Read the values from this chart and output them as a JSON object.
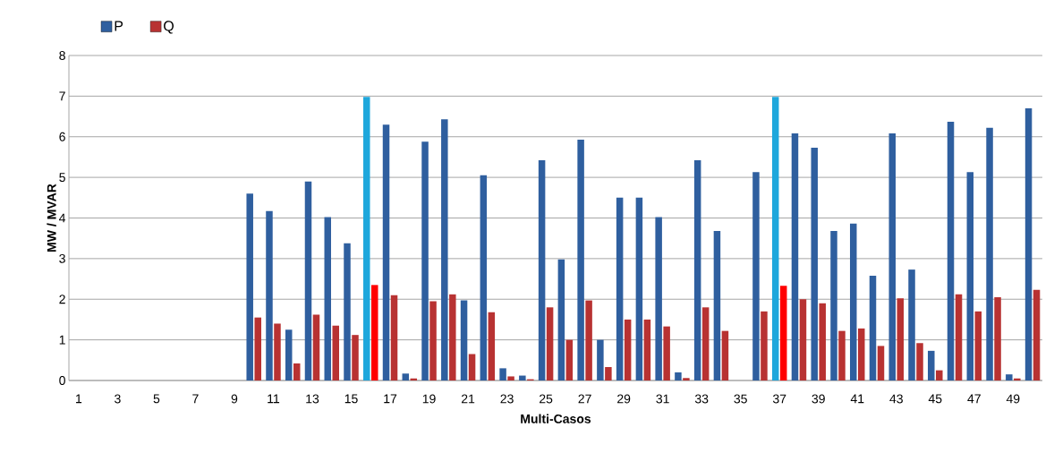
{
  "chart_data": {
    "type": "bar",
    "xlabel": "Multi-Casos",
    "ylabel": "MW / MVAR",
    "categories": [
      "1",
      null,
      "3",
      null,
      "5",
      null,
      "7",
      null,
      "9",
      null,
      "11",
      null,
      "13",
      null,
      "15",
      null,
      "17",
      null,
      "19",
      null,
      "21",
      null,
      "23",
      null,
      "25",
      null,
      "27",
      null,
      "29",
      null,
      "31",
      null,
      "33",
      null,
      "35",
      null,
      "37",
      null,
      "39",
      null,
      "41",
      null,
      "43",
      null,
      "45",
      null,
      "47",
      null,
      "49",
      null
    ],
    "series": [
      {
        "name": "P",
        "color": "#2f5f9f",
        "colors": [
          "#2f5f9f",
          "#2f5f9f",
          "#2f5f9f",
          "#2f5f9f",
          "#2f5f9f",
          "#2f5f9f",
          "#2f5f9f",
          "#2f5f9f",
          "#2f5f9f",
          "#2f5f9f",
          "#2f5f9f",
          "#2f5f9f",
          "#2f5f9f",
          "#2f5f9f",
          "#2f5f9f",
          "#1ea7dc",
          "#2f5f9f",
          "#2f5f9f",
          "#2f5f9f",
          "#2f5f9f",
          "#2f5f9f",
          "#2f5f9f",
          "#2f5f9f",
          "#2f5f9f",
          "#2f5f9f",
          "#2f5f9f",
          "#2f5f9f",
          "#2f5f9f",
          "#2f5f9f",
          "#2f5f9f",
          "#2f5f9f",
          "#2f5f9f",
          "#2f5f9f",
          "#2f5f9f",
          "#2f5f9f",
          "#2f5f9f",
          "#1ea7dc",
          "#2f5f9f",
          "#2f5f9f",
          "#2f5f9f",
          "#2f5f9f",
          "#2f5f9f",
          "#2f5f9f",
          "#2f5f9f",
          "#2f5f9f",
          "#2f5f9f",
          "#2f5f9f",
          "#2f5f9f",
          "#2f5f9f",
          "#2f5f9f"
        ],
        "values": [
          0,
          0,
          0,
          0,
          0,
          0,
          0,
          0,
          0,
          4.6,
          4.17,
          1.25,
          4.9,
          4.02,
          3.38,
          6.98,
          6.3,
          0.17,
          5.88,
          6.43,
          1.97,
          5.05,
          0.3,
          0.12,
          5.42,
          2.98,
          5.93,
          1.0,
          4.5,
          4.5,
          4.02,
          0.2,
          5.42,
          3.68,
          0,
          5.13,
          6.98,
          6.08,
          5.73,
          3.68,
          3.86,
          2.58,
          6.08,
          2.73,
          0.73,
          6.37,
          5.13,
          6.22,
          0.15,
          6.7
        ]
      },
      {
        "name": "Q",
        "color": "#b83232",
        "colors": [
          "#b83232",
          "#b83232",
          "#b83232",
          "#b83232",
          "#b83232",
          "#b83232",
          "#b83232",
          "#b83232",
          "#b83232",
          "#b83232",
          "#b83232",
          "#b83232",
          "#b83232",
          "#b83232",
          "#b83232",
          "#ff0000",
          "#b83232",
          "#b83232",
          "#b83232",
          "#b83232",
          "#b83232",
          "#b83232",
          "#b83232",
          "#b83232",
          "#b83232",
          "#b83232",
          "#b83232",
          "#b83232",
          "#b83232",
          "#b83232",
          "#b83232",
          "#b83232",
          "#b83232",
          "#b83232",
          "#b83232",
          "#b83232",
          "#ff0000",
          "#b83232",
          "#b83232",
          "#b83232",
          "#b83232",
          "#b83232",
          "#b83232",
          "#b83232",
          "#b83232",
          "#b83232",
          "#b83232",
          "#b83232",
          "#b83232",
          "#b83232"
        ],
        "values": [
          0,
          0,
          0,
          0,
          0,
          0,
          0,
          0,
          0,
          1.55,
          1.4,
          0.42,
          1.62,
          1.35,
          1.12,
          2.35,
          2.1,
          0.05,
          1.95,
          2.12,
          0.65,
          1.68,
          0.1,
          0.03,
          1.8,
          1.0,
          1.97,
          0.33,
          1.5,
          1.5,
          1.33,
          0.06,
          1.8,
          1.22,
          0,
          1.7,
          2.33,
          2.0,
          1.9,
          1.22,
          1.28,
          0.85,
          2.02,
          0.92,
          0.25,
          2.12,
          1.7,
          2.05,
          0.05,
          2.23
        ]
      }
    ],
    "ylim": [
      0,
      8
    ],
    "yticks": [
      0,
      1,
      2,
      3,
      4,
      5,
      6,
      7,
      8
    ],
    "grid": "y",
    "legend": "top left"
  }
}
